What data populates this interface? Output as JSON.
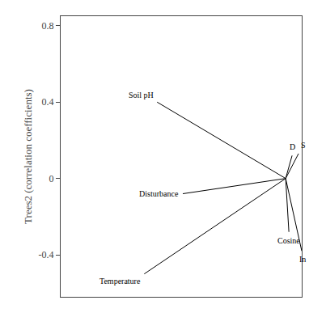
{
  "chart_data": {
    "type": "vector",
    "ylabel": "Trees2 (correlation coefficients)",
    "origin": [
      1.0,
      0.0
    ],
    "arrows": [
      {
        "label": "Soil pH",
        "x": 0.6,
        "y": 0.4
      },
      {
        "label": "Disturbance",
        "x": 0.68,
        "y": -0.08
      },
      {
        "label": "Temperature",
        "x": 0.56,
        "y": -0.5
      },
      {
        "label": "D",
        "x": 1.02,
        "y": 0.12
      },
      {
        "label": "S",
        "x": 1.04,
        "y": 0.13
      },
      {
        "label": "Cosine",
        "x": 1.01,
        "y": -0.28
      },
      {
        "label": "In",
        "x": 1.05,
        "y": -0.38
      }
    ],
    "color": "#000000",
    "xlim": [
      0.3,
      1.05
    ],
    "ylim": [
      -0.62,
      0.85
    ],
    "yticks": [
      -0.4,
      0,
      0.4,
      0.8
    ],
    "grid": false,
    "tick_labels": "y"
  }
}
